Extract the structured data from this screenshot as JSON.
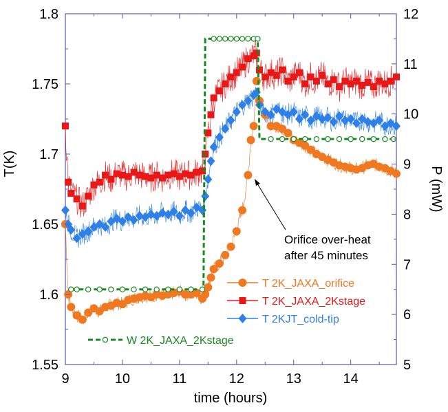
{
  "chart_data": {
    "type": "line",
    "xlabel": "time (hours)",
    "ylabel": "T(K)",
    "y2label": "P (mW)",
    "xlim": [
      9,
      14.8
    ],
    "ylim": [
      1.55,
      1.8
    ],
    "y2lim": [
      5,
      12
    ],
    "x_ticks": [
      "9",
      "10",
      "11",
      "12",
      "13",
      "14"
    ],
    "y_ticks": [
      "1.55",
      "1.6",
      "1.65",
      "1.7",
      "1.75",
      "1.8"
    ],
    "y2_ticks": [
      "5",
      "6",
      "7",
      "8",
      "9",
      "10",
      "11",
      "12"
    ],
    "annotation": {
      "lines": [
        "Orifice over-heat",
        "after  45 minutes"
      ],
      "arrow_to": [
        12.2,
        1.682
      ]
    },
    "series": [
      {
        "name": "T 2K_JAXA_orifice",
        "axis": "left",
        "color": "#F07820",
        "marker": "circle",
        "x": [
          9.0,
          9.05,
          9.1,
          9.2,
          9.3,
          9.4,
          9.5,
          9.6,
          9.7,
          9.8,
          9.9,
          10.0,
          10.1,
          10.2,
          10.3,
          10.4,
          10.5,
          10.6,
          10.7,
          10.8,
          10.9,
          11.0,
          11.1,
          11.2,
          11.3,
          11.4,
          11.45,
          11.5,
          11.55,
          11.6,
          11.7,
          11.8,
          11.9,
          12.0,
          12.1,
          12.2,
          12.25,
          12.3,
          12.35,
          12.4,
          12.5,
          12.6,
          12.7,
          12.8,
          12.9,
          13.0,
          13.1,
          13.2,
          13.3,
          13.4,
          13.5,
          13.6,
          13.7,
          13.8,
          13.9,
          14.0,
          14.1,
          14.2,
          14.3,
          14.4,
          14.5,
          14.6,
          14.7,
          14.8
        ],
        "y": [
          1.65,
          1.6,
          1.591,
          1.585,
          1.582,
          1.587,
          1.59,
          1.588,
          1.591,
          1.592,
          1.594,
          1.593,
          1.596,
          1.597,
          1.598,
          1.599,
          1.598,
          1.6,
          1.599,
          1.6,
          1.601,
          1.602,
          1.6,
          1.6,
          1.601,
          1.597,
          1.6,
          1.605,
          1.612,
          1.618,
          1.622,
          1.628,
          1.634,
          1.645,
          1.66,
          1.685,
          1.71,
          1.72,
          1.752,
          1.738,
          1.728,
          1.72,
          1.72,
          1.718,
          1.715,
          1.71,
          1.708,
          1.706,
          1.703,
          1.7,
          1.698,
          1.696,
          1.694,
          1.692,
          1.691,
          1.69,
          1.689,
          1.69,
          1.692,
          1.693,
          1.691,
          1.69,
          1.688,
          1.686
        ]
      },
      {
        "name": "T 2K_JAXA_2Kstage",
        "axis": "left",
        "color": "#E81818",
        "marker": "square",
        "x": [
          9.0,
          9.05,
          9.1,
          9.2,
          9.3,
          9.4,
          9.5,
          9.6,
          9.7,
          9.8,
          9.9,
          10.0,
          10.1,
          10.2,
          10.3,
          10.4,
          10.5,
          10.6,
          10.7,
          10.8,
          10.9,
          11.0,
          11.1,
          11.2,
          11.3,
          11.4,
          11.45,
          11.5,
          11.55,
          11.6,
          11.7,
          11.8,
          11.9,
          12.0,
          12.1,
          12.2,
          12.3,
          12.35,
          12.4,
          12.5,
          12.6,
          12.7,
          12.8,
          12.9,
          13.0,
          13.1,
          13.2,
          13.3,
          13.4,
          13.5,
          13.6,
          13.7,
          13.8,
          13.9,
          14.0,
          14.1,
          14.2,
          14.3,
          14.4,
          14.5,
          14.6,
          14.7,
          14.8
        ],
        "y": [
          1.72,
          1.68,
          1.672,
          1.668,
          1.663,
          1.67,
          1.678,
          1.68,
          1.685,
          1.682,
          1.686,
          1.685,
          1.684,
          1.687,
          1.685,
          1.684,
          1.683,
          1.685,
          1.683,
          1.685,
          1.686,
          1.684,
          1.686,
          1.685,
          1.687,
          1.688,
          1.7,
          1.715,
          1.728,
          1.74,
          1.745,
          1.75,
          1.755,
          1.758,
          1.762,
          1.768,
          1.77,
          1.772,
          1.76,
          1.755,
          1.758,
          1.756,
          1.76,
          1.752,
          1.755,
          1.758,
          1.75,
          1.755,
          1.752,
          1.756,
          1.75,
          1.753,
          1.748,
          1.752,
          1.75,
          1.752,
          1.749,
          1.751,
          1.748,
          1.752,
          1.75,
          1.752,
          1.755
        ]
      },
      {
        "name": "T 2KJT_cold-tip",
        "axis": "left",
        "color": "#2E7FE8",
        "marker": "diamond",
        "x": [
          9.0,
          9.05,
          9.1,
          9.2,
          9.3,
          9.4,
          9.5,
          9.6,
          9.7,
          9.8,
          9.9,
          10.0,
          10.1,
          10.2,
          10.3,
          10.4,
          10.5,
          10.6,
          10.7,
          10.8,
          10.9,
          11.0,
          11.1,
          11.2,
          11.3,
          11.4,
          11.45,
          11.5,
          11.55,
          11.6,
          11.7,
          11.8,
          11.9,
          12.0,
          12.1,
          12.2,
          12.3,
          12.35,
          12.4,
          12.5,
          12.6,
          12.7,
          12.8,
          12.9,
          13.0,
          13.1,
          13.2,
          13.3,
          13.4,
          13.5,
          13.6,
          13.7,
          13.8,
          13.9,
          14.0,
          14.1,
          14.2,
          14.3,
          14.4,
          14.5,
          14.6,
          14.7,
          14.8
        ],
        "y": [
          1.66,
          1.65,
          1.646,
          1.64,
          1.643,
          1.645,
          1.648,
          1.65,
          1.648,
          1.652,
          1.654,
          1.652,
          1.655,
          1.653,
          1.656,
          1.655,
          1.657,
          1.656,
          1.658,
          1.657,
          1.659,
          1.656,
          1.66,
          1.658,
          1.662,
          1.66,
          1.67,
          1.682,
          1.695,
          1.705,
          1.712,
          1.718,
          1.724,
          1.73,
          1.735,
          1.738,
          1.742,
          1.744,
          1.735,
          1.73,
          1.728,
          1.732,
          1.73,
          1.728,
          1.73,
          1.725,
          1.728,
          1.724,
          1.727,
          1.725,
          1.726,
          1.723,
          1.727,
          1.724,
          1.725,
          1.722,
          1.725,
          1.723,
          1.722,
          1.724,
          1.72,
          1.722,
          1.72
        ]
      },
      {
        "name": "W 2K_JAXA_2Kstage",
        "axis": "right",
        "color": "#168A1E",
        "marker": "open-circle",
        "dashed": true,
        "x": [
          9.1,
          9.2,
          9.4,
          9.6,
          9.8,
          10.0,
          10.2,
          10.4,
          10.6,
          10.8,
          11.0,
          11.2,
          11.4,
          11.42,
          11.45,
          11.6,
          11.7,
          11.8,
          11.9,
          12.0,
          12.1,
          12.2,
          12.3,
          12.37,
          12.4,
          12.45,
          12.6,
          12.8,
          13.0,
          13.2,
          13.4,
          13.6,
          13.8,
          14.0,
          14.2,
          14.4,
          14.6,
          14.75
        ],
        "y": [
          6.5,
          6.5,
          6.5,
          6.5,
          6.5,
          6.5,
          6.5,
          6.5,
          6.5,
          6.5,
          6.5,
          6.5,
          6.5,
          6.5,
          11.5,
          11.5,
          11.5,
          11.5,
          11.5,
          11.5,
          11.5,
          11.5,
          11.5,
          11.5,
          9.5,
          9.5,
          9.5,
          9.5,
          9.5,
          9.5,
          9.5,
          9.5,
          9.5,
          9.5,
          9.5,
          9.5,
          9.5,
          9.5
        ]
      }
    ]
  }
}
